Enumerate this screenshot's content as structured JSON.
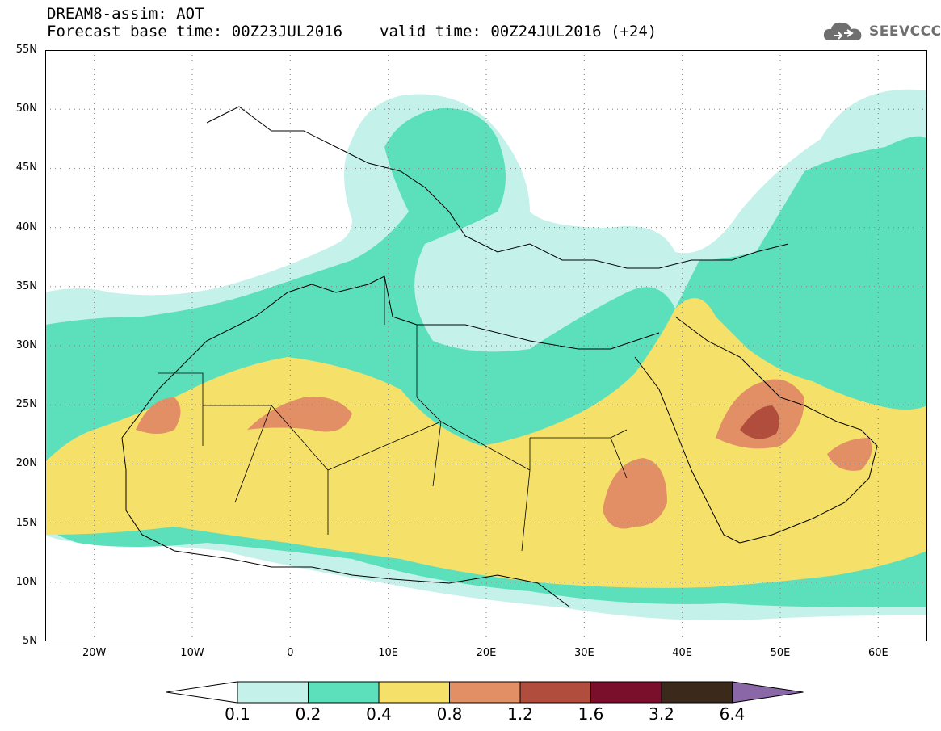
{
  "header": {
    "title": "DREAM8-assim: AOT",
    "base_time": "Forecast base time: 00Z23JUL2016",
    "valid_time": "valid time: 00Z24JUL2016 (+24)"
  },
  "logo": {
    "text": "SEEVCCC",
    "icon": "cloud-icon"
  },
  "map": {
    "lat_labels": [
      "55N",
      "50N",
      "45N",
      "40N",
      "35N",
      "30N",
      "25N",
      "20N",
      "15N",
      "10N",
      "5N"
    ],
    "lon_labels": [
      "20W",
      "10W",
      "0",
      "10E",
      "20E",
      "30E",
      "40E",
      "50E",
      "60E"
    ],
    "lat_values": [
      55,
      50,
      45,
      40,
      35,
      30,
      25,
      20,
      15,
      10,
      5
    ],
    "lon_values": [
      -20,
      -10,
      0,
      10,
      20,
      30,
      40,
      50,
      60
    ],
    "extent": {
      "lon": [
        -25,
        65
      ],
      "lat": [
        5,
        55
      ]
    },
    "grid_style": "dotted"
  },
  "colorbar": {
    "labels": [
      "0.1",
      "0.2",
      "0.4",
      "0.8",
      "1.2",
      "1.6",
      "3.2",
      "6.4"
    ],
    "colors": [
      "#c4f2ea",
      "#5ce0bb",
      "#f5e16a",
      "#e28f66",
      "#b04d3c",
      "#7a0f2c",
      "#3b2a1b",
      "#8a68a8"
    ]
  }
}
